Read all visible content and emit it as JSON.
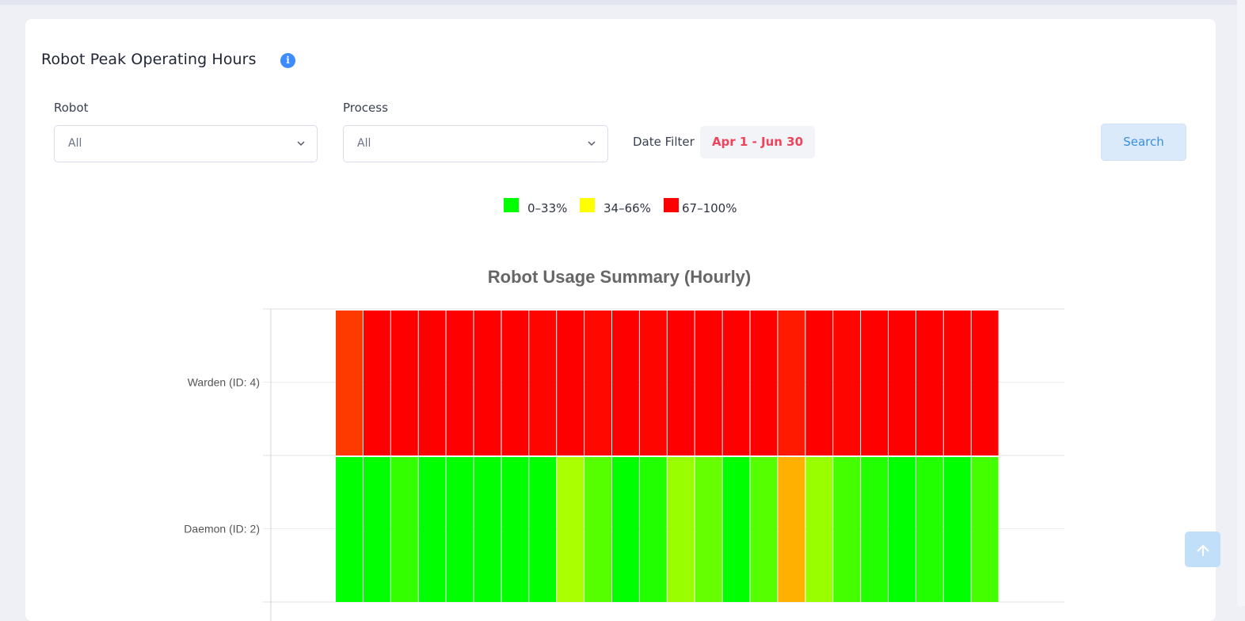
{
  "page": {
    "title": "Robot Peak Operating Hours",
    "info_icon": "info-icon"
  },
  "filters": {
    "robot": {
      "label": "Robot",
      "value": "All"
    },
    "process": {
      "label": "Process",
      "value": "All"
    },
    "date": {
      "label": "Date Filter",
      "value": "Apr 1 - Jun 30"
    },
    "search_label": "Search"
  },
  "legend": [
    {
      "label": "0–33%",
      "color": "#00ff00"
    },
    {
      "label": "34–66%",
      "color": "#ffff00"
    },
    {
      "label": "67–100%",
      "color": "#ff0000"
    }
  ],
  "chart_data": {
    "type": "heatmap",
    "title": "Robot Usage Summary (Hourly)",
    "x_label": "",
    "y_label": "",
    "x_ticks": [],
    "color_scale": {
      "min_color": "#00ff00",
      "mid_color": "#ffff00",
      "max_color": "#ff0000",
      "range": [
        0,
        100
      ]
    },
    "rows": [
      {
        "name": "Warden (ID: 4)",
        "cell_colors": [
          "#ff3a00",
          "#ff0000",
          "#ff0000",
          "#ff0000",
          "#ff0000",
          "#ff0000",
          "#ff0000",
          "#ff0500",
          "#ff0000",
          "#ff0800",
          "#ff0000",
          "#ff0500",
          "#ff0000",
          "#ff0000",
          "#ff0000",
          "#ff0000",
          "#ff1a00",
          "#ff0000",
          "#ff0500",
          "#ff0000",
          "#ff0000",
          "#ff0000",
          "#ff0000",
          "#ff0000"
        ]
      },
      {
        "name": "Daemon (ID: 2)",
        "cell_colors": [
          "#00ff00",
          "#00ff00",
          "#33ff00",
          "#00ff00",
          "#00ff00",
          "#00ff00",
          "#00ff00",
          "#00ff00",
          "#aaff00",
          "#55ff00",
          "#00ff00",
          "#22ff00",
          "#99ff00",
          "#66ff00",
          "#00ff00",
          "#55ff00",
          "#ffb000",
          "#99ff00",
          "#44ff00",
          "#22ff00",
          "#00ff00",
          "#22ff00",
          "#00ff00",
          "#44ff00"
        ]
      }
    ]
  },
  "scroll_top_icon": "arrow-up-icon"
}
